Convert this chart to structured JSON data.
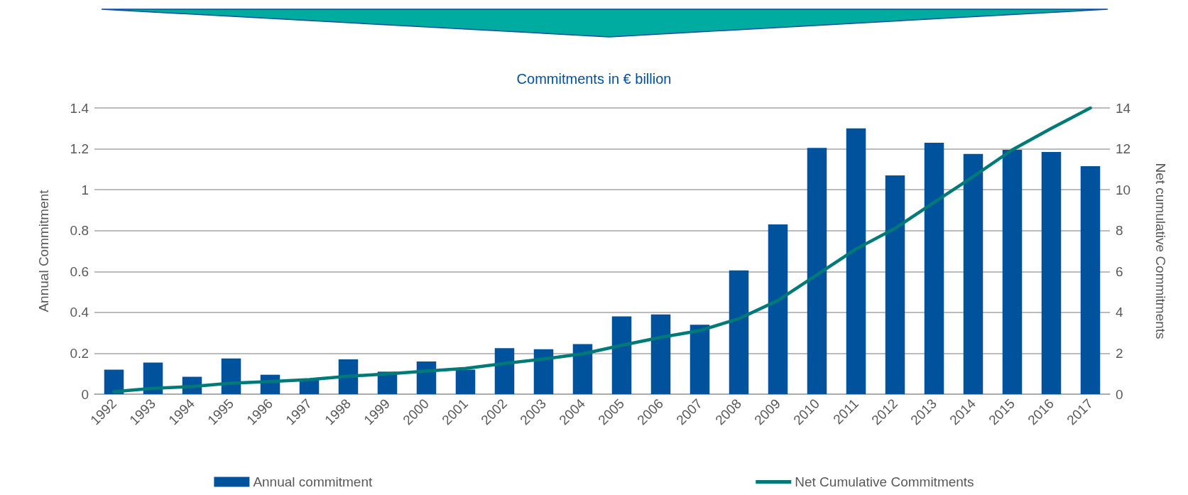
{
  "chart_data": {
    "type": "bar",
    "title": "Commitments in € billion",
    "ylabel": "Annual Commitment",
    "y2label": "Net cumulative Commitments",
    "categories": [
      "1992",
      "1993",
      "1994",
      "1995",
      "1996",
      "1997",
      "1998",
      "1999",
      "2000",
      "2001",
      "2002",
      "2003",
      "2004",
      "2005",
      "2006",
      "2007",
      "2008",
      "2009",
      "2010",
      "2011",
      "2012",
      "2013",
      "2014",
      "2015",
      "2016",
      "2017"
    ],
    "series": [
      {
        "name": "Annual commitment",
        "color": "#00529c",
        "values": [
          0.12,
          0.155,
          0.085,
          0.175,
          0.095,
          0.075,
          0.17,
          0.11,
          0.16,
          0.12,
          0.225,
          0.22,
          0.245,
          0.38,
          0.39,
          0.34,
          0.605,
          0.83,
          1.205,
          1.3,
          1.07,
          1.23,
          1.175,
          1.195,
          1.185,
          1.115
        ]
      },
      {
        "name": "Net Cumulative Commitments",
        "type": "line",
        "axis": "y2",
        "color": "#007a78",
        "values": [
          0.12,
          0.29,
          0.37,
          0.54,
          0.62,
          0.71,
          0.88,
          0.99,
          1.13,
          1.26,
          1.5,
          1.72,
          1.97,
          2.39,
          2.78,
          3.11,
          3.69,
          4.58,
          5.84,
          7.1,
          8.11,
          9.38,
          10.64,
          11.95,
          13.0,
          14.0
        ]
      }
    ],
    "ylim": [
      0,
      1.4
    ],
    "yticks": [
      0,
      0.2,
      0.4,
      0.6,
      0.8,
      1,
      1.2,
      1.4
    ],
    "y2lim": [
      0,
      14
    ],
    "y2ticks": [
      0,
      2,
      4,
      6,
      8,
      10,
      12,
      14
    ],
    "grid": "y",
    "legend": "bottom",
    "marker": "none",
    "line_style": "solid"
  }
}
